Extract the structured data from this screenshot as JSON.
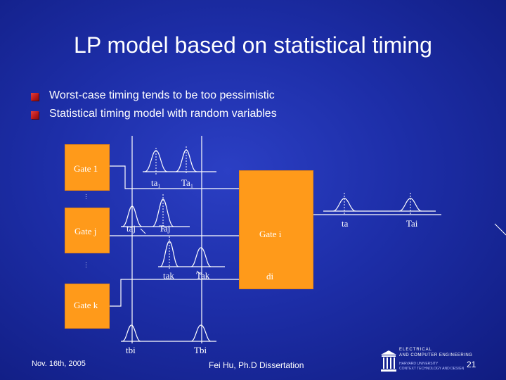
{
  "slide": {
    "title": "LP model based on statistical timing",
    "bullets": [
      "Worst-case timing tends to be too pessimistic",
      "Statistical timing model with random variables"
    ]
  },
  "diagram": {
    "gates": {
      "gate1": "Gate 1",
      "gatej": "Gate j",
      "gatek": "Gate k",
      "gatei": "Gate i"
    },
    "labels": {
      "ta1": "ta₁",
      "Ta1": "Ta₁",
      "taj": "taj",
      "Taj": "Taj",
      "tak": "tak",
      "Tak": "Tak",
      "di": "di",
      "ta": "ta",
      "Tai": "Tai",
      "tbi": "tbi",
      "Tbi": "Tbi",
      "ellipsis": "..."
    },
    "colors": {
      "background": "#1d2ea8",
      "gate_fill": "#ff9a1a",
      "line": "#ffffff",
      "bullet": "#c41e1e"
    }
  },
  "footer": {
    "date": "Nov. 16th, 2005",
    "author": "Fei Hu, Ph.D Dissertation",
    "page": "21",
    "logo_line1": "ELECTRICAL",
    "logo_line2": "AND COMPUTER ENGINEERING",
    "logo_line3": "HARVARD UNIVERSITY",
    "logo_line4": "CONTEXT TECHNOLOGY AND DESIGN"
  }
}
